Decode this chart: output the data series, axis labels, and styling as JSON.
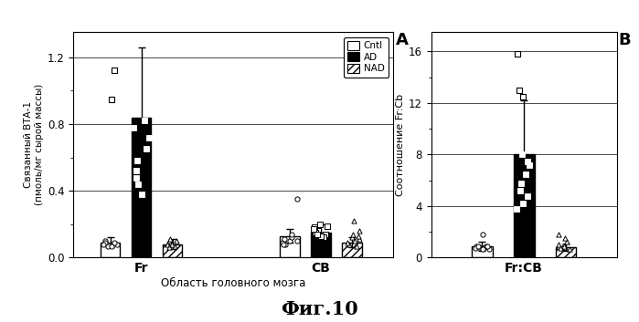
{
  "panel_A": {
    "ylabel": "Связанный ВТА-1\n(пмоль/мг сырой массы)",
    "xlabel": "Область головного мозга",
    "xlabels": [
      "Fr",
      "CB"
    ],
    "ylim": [
      0.0,
      1.35
    ],
    "yticks": [
      0.0,
      0.4,
      0.8,
      1.2
    ],
    "bar_heights": {
      "Fr": {
        "Cntl": 0.09,
        "AD": 0.84,
        "NAD": 0.08
      },
      "CB": {
        "Cntl": 0.13,
        "AD": 0.15,
        "NAD": 0.09
      }
    },
    "bar_errors": {
      "Fr": {
        "Cntl": 0.03,
        "AD": 0.42,
        "NAD": 0.03
      },
      "CB": {
        "Cntl": 0.04,
        "AD": 0.05,
        "NAD": 0.03
      }
    },
    "cntl_Fr_scatter": [
      0.07,
      0.08,
      0.09,
      0.07,
      0.1,
      0.09,
      0.08
    ],
    "ad_Fr_scatter": [
      0.82,
      0.78,
      0.72,
      0.65,
      0.58,
      0.52,
      0.48,
      0.44,
      0.38
    ],
    "nad_Fr_scatter": [
      0.09,
      0.1,
      0.07,
      0.08,
      0.06,
      0.11,
      0.08,
      0.1
    ],
    "cntl_Fr_outliers": [
      1.12,
      0.95
    ],
    "cntl_CB_scatter": [
      0.08,
      0.1,
      0.12,
      0.09,
      0.14,
      0.11,
      0.08,
      0.1,
      0.35
    ],
    "ad_CB_scatter": [
      0.14,
      0.16,
      0.18,
      0.12,
      0.2,
      0.15,
      0.13,
      0.17,
      0.19,
      0.14
    ],
    "nad_CB_scatter": [
      0.1,
      0.08,
      0.12,
      0.14,
      0.09,
      0.11,
      0.07,
      0.16,
      0.13,
      0.22
    ]
  },
  "panel_B": {
    "ylabel": "Соотношение Fr:Cb",
    "xlabel": "Fr:CB",
    "ylim": [
      0.0,
      17.5
    ],
    "yticks": [
      0.0,
      4.0,
      8.0,
      12.0,
      16.0
    ],
    "bar_heights": {
      "Cntl": 0.9,
      "AD": 8.0,
      "NAD": 0.8
    },
    "bar_errors": {
      "Cntl": 0.35,
      "AD": 4.2,
      "NAD": 0.3
    },
    "cntl_scatter": [
      0.7,
      0.8,
      0.9,
      0.85,
      0.75,
      0.9,
      0.8,
      0.7,
      0.85,
      1.8
    ],
    "ad_scatter": [
      8.0,
      7.5,
      7.2,
      6.5,
      5.8,
      5.2,
      4.8,
      4.2,
      3.8,
      8.5
    ],
    "nad_scatter": [
      0.8,
      0.9,
      0.7,
      1.0,
      0.8,
      0.9,
      0.75,
      1.2,
      1.5,
      1.8
    ],
    "cntl_outliers_B": [],
    "ad_outliers_B": [
      12.5,
      13.0,
      15.8
    ]
  },
  "bar_width": 0.14,
  "figure_label": "Фиг.10"
}
